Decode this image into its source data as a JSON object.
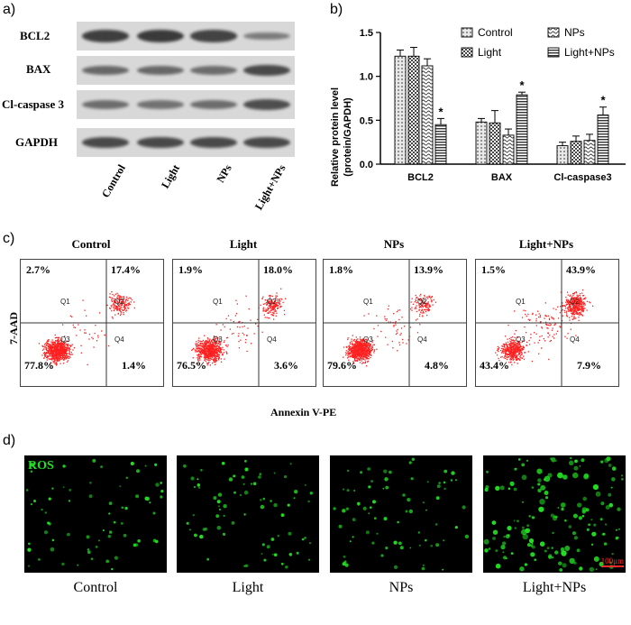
{
  "panels": {
    "a": "a)",
    "b": "b)",
    "c": "c)",
    "d": "d)"
  },
  "western_blot": {
    "rows": [
      "BCL2",
      "BAX",
      "Cl-caspase 3",
      "GAPDH"
    ],
    "lanes": [
      "Control",
      "Light",
      "NPs",
      "Light+NPs"
    ],
    "band_intensity": [
      [
        0.95,
        1.0,
        0.9,
        0.35
      ],
      [
        0.55,
        0.55,
        0.5,
        0.85
      ],
      [
        0.5,
        0.45,
        0.5,
        0.8
      ],
      [
        0.85,
        0.85,
        0.85,
        0.85
      ]
    ]
  },
  "chart_data": {
    "type": "bar",
    "ylabel": "Relative protein level (protein/GAPDH)",
    "ylabel_line1": "Relative protein level",
    "ylabel_line2": "(protein/GAPDH)",
    "ylim": [
      0,
      1.5
    ],
    "yticks": [
      "0.0",
      "0.5",
      "1.0",
      "1.5"
    ],
    "categories": [
      "BCL2",
      "BAX",
      "Cl-caspase3"
    ],
    "series": [
      {
        "name": "Control",
        "values": [
          1.23,
          0.48,
          0.21
        ],
        "errors": [
          0.07,
          0.04,
          0.04
        ]
      },
      {
        "name": "Light",
        "values": [
          1.23,
          0.47,
          0.26
        ],
        "errors": [
          0.1,
          0.14,
          0.06
        ]
      },
      {
        "name": "NPs",
        "values": [
          1.12,
          0.33,
          0.27
        ],
        "errors": [
          0.08,
          0.07,
          0.07
        ]
      },
      {
        "name": "Light+NPs",
        "values": [
          0.45,
          0.79,
          0.56
        ],
        "errors": [
          0.07,
          0.03,
          0.09
        ]
      }
    ],
    "significance": [
      [
        3,
        0
      ],
      [
        3,
        1
      ],
      [
        3,
        2
      ]
    ],
    "significance_mark": "*",
    "legend_position": "top-right"
  },
  "flow_cytometry": {
    "ylabel": "7-AAD",
    "xlabel": "Annexin V-PE",
    "groups": [
      {
        "title": "Control",
        "q1": "2.7%",
        "q2": "17.4%",
        "q3": "77.8%",
        "q4": "1.4%"
      },
      {
        "title": "Light",
        "q1": "1.9%",
        "q2": "18.0%",
        "q3": "76.5%",
        "q4": "3.6%"
      },
      {
        "title": "NPs",
        "q1": "1.8%",
        "q2": "13.9%",
        "q3": "79.6%",
        "q4": "4.8%"
      },
      {
        "title": "Light+NPs",
        "q1": "1.5%",
        "q2": "43.9%",
        "q3": "43.4%",
        "q4": "7.9%"
      }
    ],
    "quadrant_tags": [
      "Q1",
      "Q2",
      "Q3",
      "Q4"
    ]
  },
  "fluorescence": {
    "stain_label": "ROS",
    "scale_bar": "100μm",
    "captions": [
      "Control",
      "Light",
      "NPs",
      "Light+NPs"
    ],
    "cell_density": [
      0.25,
      0.3,
      0.3,
      0.85
    ]
  },
  "colors": {
    "green": "#22e022",
    "scatter_red": "#ff2020",
    "scale_red": "#ff2a2a"
  }
}
